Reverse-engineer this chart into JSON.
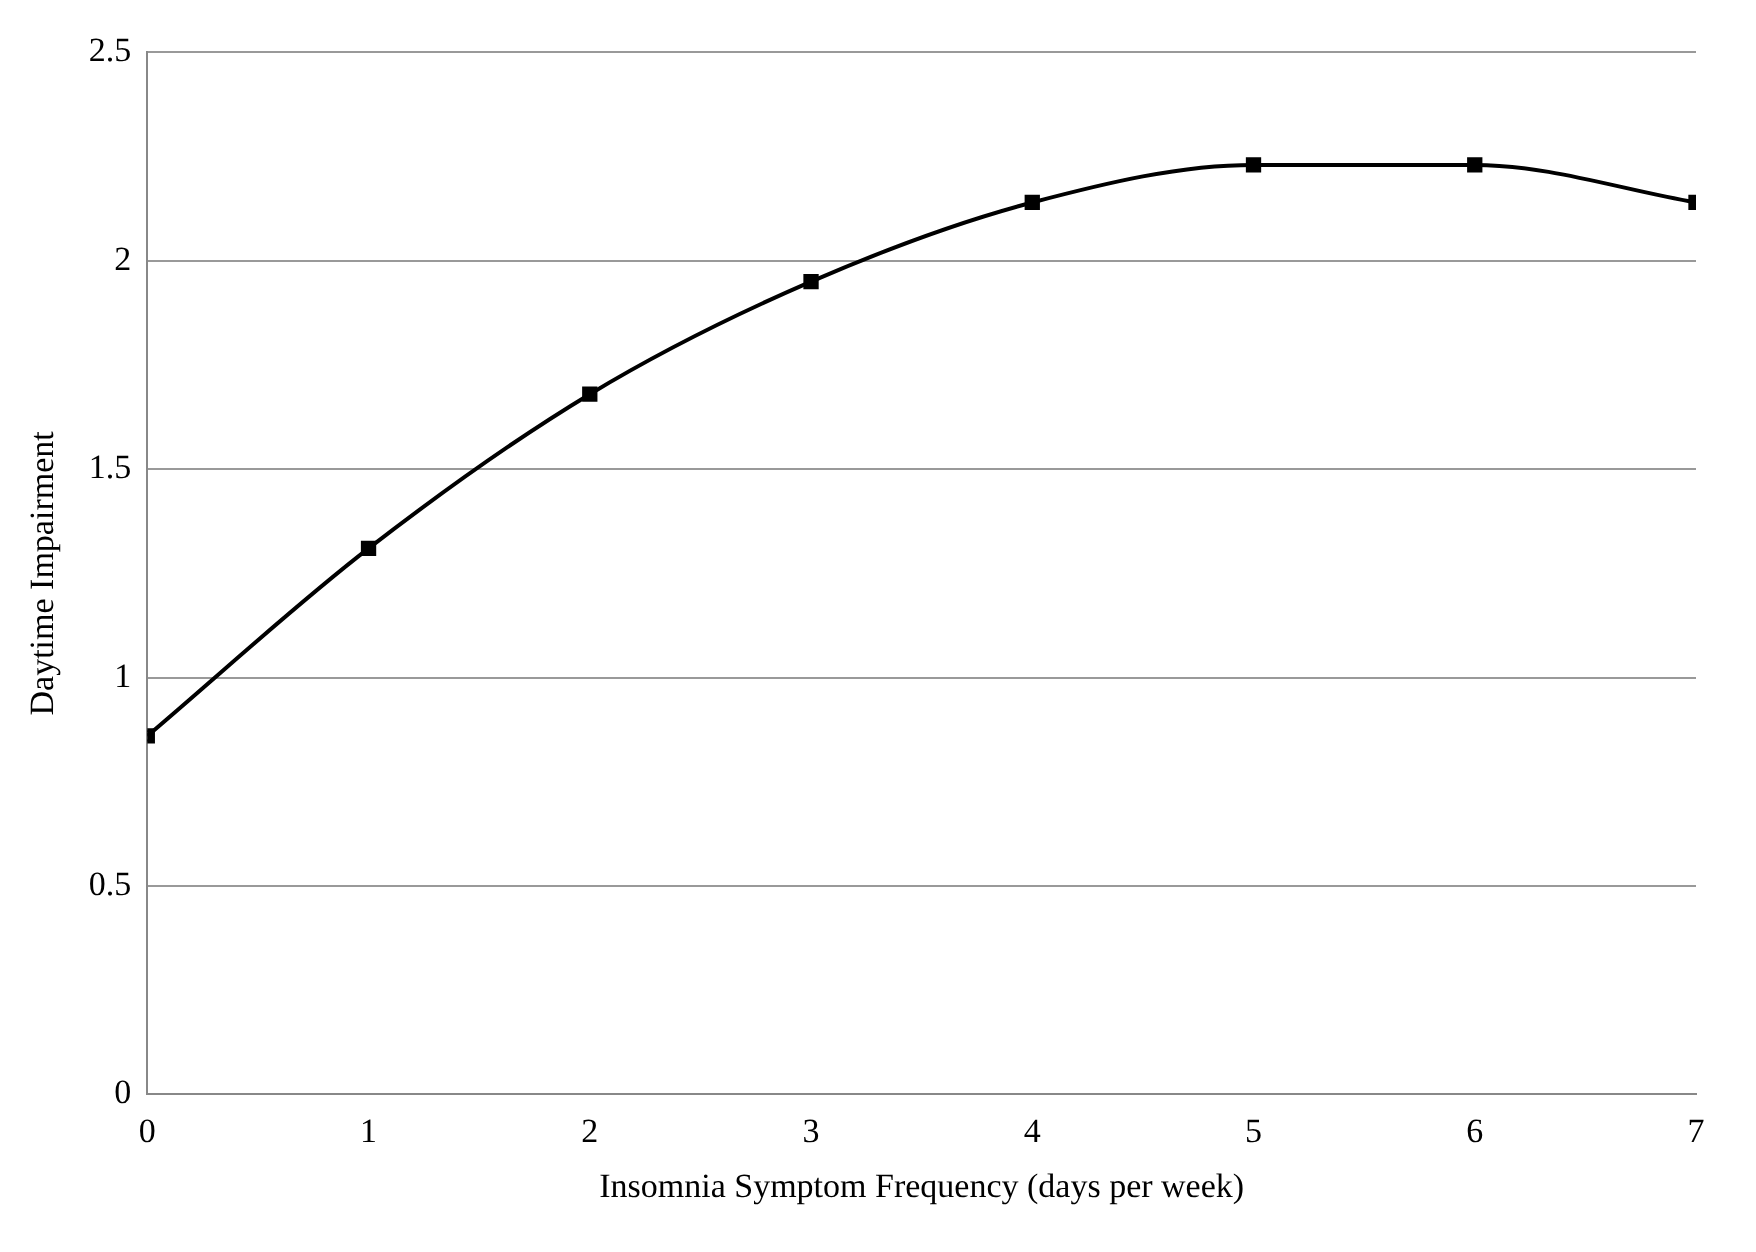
{
  "chart_data": {
    "type": "line",
    "xlabel": "Insomnia Symptom Frequency (days per week)",
    "ylabel": "Daytime Impairment",
    "x": [
      0,
      1,
      2,
      3,
      4,
      5,
      6,
      7
    ],
    "series": [
      {
        "color": "#000000",
        "values": [
          0.86,
          1.31,
          1.68,
          1.95,
          2.14,
          2.23,
          2.23,
          2.14
        ]
      }
    ],
    "xlim": [
      0,
      7
    ],
    "xticks": [
      0,
      1,
      2,
      3,
      4,
      5,
      6,
      7
    ],
    "ylim": [
      0,
      2.5
    ],
    "yticks": [
      0,
      0.5,
      1,
      1.5,
      2,
      2.5
    ],
    "grid": "y",
    "legend": false,
    "marker": "square",
    "line_style": "solid"
  }
}
